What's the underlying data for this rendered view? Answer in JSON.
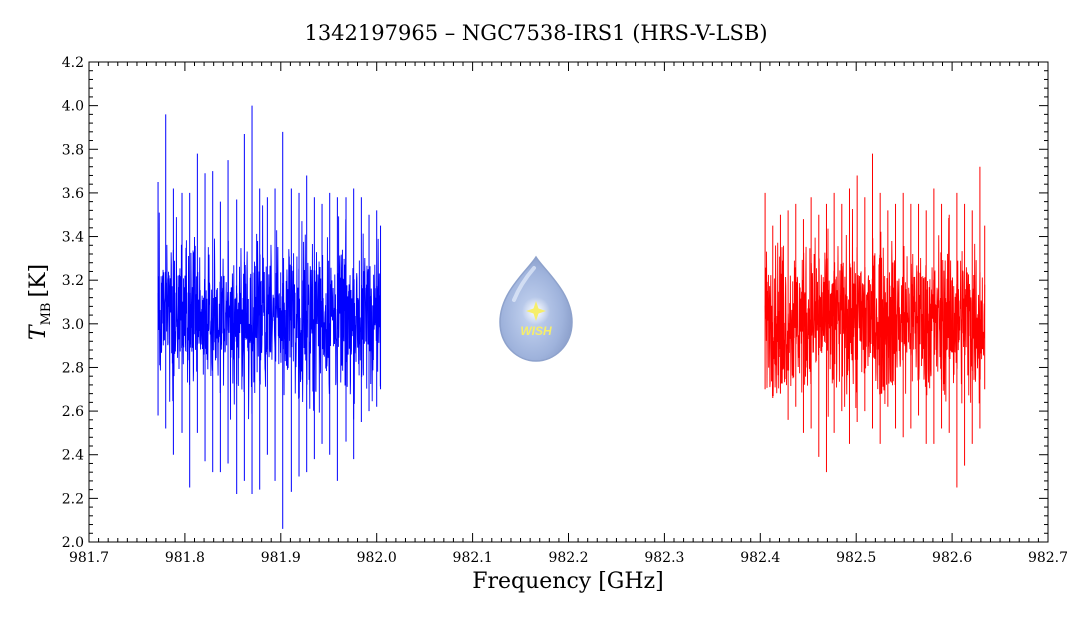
{
  "chart_data": {
    "type": "line",
    "title": "1342197965 – NGC7538-IRS1 (HRS-V-LSB)",
    "xlabel": "Frequency [GHz]",
    "ylabel_main": "T",
    "ylabel_sub": "MB",
    "ylabel_unit": "[K]",
    "xlim": [
      981.7,
      982.7
    ],
    "ylim": [
      2.0,
      4.2
    ],
    "xticks": [
      981.7,
      981.8,
      981.9,
      982.0,
      982.1,
      982.2,
      982.3,
      982.4,
      982.5,
      982.6,
      982.7
    ],
    "xtick_labels": [
      "981.7",
      "981.8",
      "981.9",
      "982.0",
      "982.1",
      "982.2",
      "982.3",
      "982.4",
      "982.5",
      "982.6",
      "982.7"
    ],
    "yticks": [
      2.0,
      2.2,
      2.4,
      2.6,
      2.8,
      3.0,
      3.2,
      3.4,
      3.6,
      3.8,
      4.0,
      4.2
    ],
    "ytick_labels": [
      "2.0",
      "2.2",
      "2.4",
      "2.6",
      "2.8",
      "3.0",
      "3.2",
      "3.4",
      "3.6",
      "3.8",
      "4.0",
      "4.2"
    ],
    "grid": false,
    "series": [
      {
        "color": "#0000ff",
        "x_range": [
          981.772,
          982.004
        ],
        "mean": 3.03,
        "x": [
          981.772,
          981.78,
          981.788,
          981.797,
          981.805,
          981.813,
          981.821,
          981.829,
          981.837,
          981.845,
          981.854,
          981.862,
          981.87,
          981.878,
          981.886,
          981.894,
          981.902,
          981.911,
          981.919,
          981.927,
          981.935,
          981.943,
          981.951,
          981.959,
          981.968,
          981.976,
          981.984,
          981.992,
          982.0,
          982.004
        ],
        "y_max": [
          3.65,
          3.96,
          3.62,
          3.6,
          3.6,
          3.78,
          3.69,
          3.7,
          3.56,
          3.75,
          3.57,
          3.87,
          4.0,
          3.62,
          3.58,
          3.62,
          3.88,
          3.62,
          3.6,
          3.68,
          3.58,
          3.55,
          3.6,
          3.58,
          3.58,
          3.62,
          3.58,
          3.5,
          3.52,
          3.45
        ],
        "y_min": [
          2.58,
          2.52,
          2.4,
          2.5,
          2.25,
          2.5,
          2.37,
          2.32,
          2.32,
          2.36,
          2.22,
          2.28,
          2.22,
          2.24,
          2.4,
          2.28,
          2.06,
          2.23,
          2.3,
          2.32,
          2.38,
          2.45,
          2.4,
          2.28,
          2.46,
          2.38,
          2.55,
          2.6,
          2.62,
          2.7
        ]
      },
      {
        "color": "#ff0000",
        "x_range": [
          982.405,
          982.634
        ],
        "mean": 3.02,
        "x": [
          982.405,
          982.413,
          982.421,
          982.429,
          982.437,
          982.445,
          982.453,
          982.461,
          982.469,
          982.477,
          982.485,
          982.493,
          982.501,
          982.509,
          982.517,
          982.525,
          982.533,
          982.541,
          982.549,
          982.557,
          982.565,
          982.573,
          982.581,
          982.589,
          982.597,
          982.605,
          982.613,
          982.621,
          982.629,
          982.634
        ],
        "y_max": [
          3.6,
          3.45,
          3.5,
          3.52,
          3.55,
          3.48,
          3.58,
          3.5,
          3.55,
          3.6,
          3.55,
          3.62,
          3.68,
          3.58,
          3.78,
          3.6,
          3.52,
          3.55,
          3.6,
          3.55,
          3.55,
          3.52,
          3.62,
          3.55,
          3.5,
          3.6,
          3.55,
          3.52,
          3.72,
          3.45
        ],
        "y_min": [
          2.7,
          2.66,
          2.68,
          2.56,
          2.62,
          2.5,
          2.52,
          2.39,
          2.32,
          2.5,
          2.6,
          2.45,
          2.55,
          2.6,
          2.52,
          2.45,
          2.62,
          2.52,
          2.48,
          2.52,
          2.58,
          2.45,
          2.45,
          2.52,
          2.5,
          2.25,
          2.35,
          2.45,
          2.52,
          2.7
        ]
      }
    ]
  },
  "logo": {
    "text": "WISH",
    "fill_color": "#9fb3dc",
    "star_color": "#f6ee6a"
  }
}
